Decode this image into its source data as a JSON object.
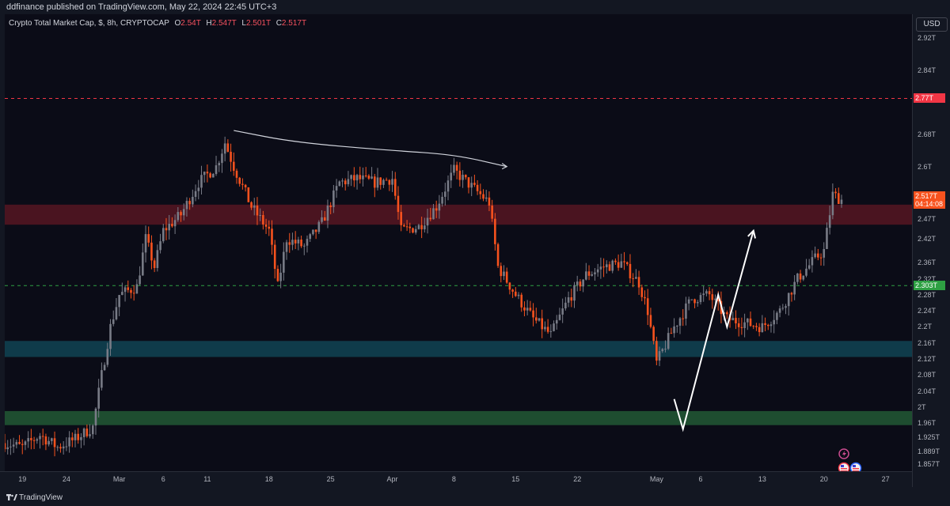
{
  "header": {
    "published": "ddfinance published on TradingView.com, May 22, 2024 22:45 UTC+3"
  },
  "legend": {
    "title": "Crypto Total Market Cap, $, 8h, CRYPTOCAP",
    "o_label": "O",
    "o_value": "2.54T",
    "h_label": "H",
    "h_value": "2.547T",
    "l_label": "L",
    "l_value": "2.501T",
    "c_label": "C",
    "c_value": "2.517T"
  },
  "price_axis": {
    "currency": "USD",
    "ticks": [
      "2.92T",
      "2.84T",
      "2.77T",
      "2.68T",
      "2.6T",
      "2.47T",
      "2.42T",
      "2.36T",
      "2.32T",
      "2.28T",
      "2.24T",
      "2.2T",
      "2.16T",
      "2.12T",
      "2.08T",
      "2.04T",
      "2T",
      "1.96T",
      "1.925T",
      "1.889T",
      "1.857T"
    ],
    "badges": {
      "red": "2.77T",
      "green": "2.303T",
      "last_price": "2.517T",
      "countdown": "04:14:08"
    }
  },
  "time_axis": {
    "ticks": [
      "19",
      "24",
      "Mar",
      "6",
      "11",
      "18",
      "25",
      "Apr",
      "8",
      "15",
      "22",
      "May",
      "6",
      "13",
      "20",
      "27"
    ]
  },
  "footer": {
    "brand": "TradingView"
  },
  "colors": {
    "up": "#787b86",
    "down": "#f7521e",
    "red_zone": "#4a1420",
    "blue_zone": "#0f3b4a",
    "green_zone": "#1e4d30",
    "red_line": "#f23645",
    "green_line": "#2ea043"
  },
  "chart_data": {
    "type": "candlestick",
    "title": "Crypto Total Market Cap, $, 8h, CRYPTOCAP",
    "y_unit": "T USD",
    "ylim": [
      1.84,
      2.98
    ],
    "x_range": [
      "2024-02-17",
      "2024-05-30"
    ],
    "timeframe": "8h",
    "anchors": [
      [
        "2024-02-17",
        1.91
      ],
      [
        "2024-02-19",
        1.9
      ],
      [
        "2024-02-21",
        1.93
      ],
      [
        "2024-02-23",
        1.9
      ],
      [
        "2024-02-25",
        1.92
      ],
      [
        "2024-02-27",
        1.95
      ],
      [
        "2024-02-28",
        2.08
      ],
      [
        "2024-02-29",
        2.2
      ],
      [
        "2024-03-01",
        2.28
      ],
      [
        "2024-03-03",
        2.3
      ],
      [
        "2024-03-04",
        2.42
      ],
      [
        "2024-03-05",
        2.35
      ],
      [
        "2024-03-06",
        2.44
      ],
      [
        "2024-03-08",
        2.48
      ],
      [
        "2024-03-10",
        2.56
      ],
      [
        "2024-03-12",
        2.6
      ],
      [
        "2024-03-13",
        2.66
      ],
      [
        "2024-03-14",
        2.6
      ],
      [
        "2024-03-16",
        2.5
      ],
      [
        "2024-03-18",
        2.44
      ],
      [
        "2024-03-19",
        2.3
      ],
      [
        "2024-03-20",
        2.42
      ],
      [
        "2024-03-22",
        2.4
      ],
      [
        "2024-03-24",
        2.46
      ],
      [
        "2024-03-26",
        2.56
      ],
      [
        "2024-03-28",
        2.57
      ],
      [
        "2024-03-30",
        2.56
      ],
      [
        "2024-04-01",
        2.57
      ],
      [
        "2024-04-02",
        2.44
      ],
      [
        "2024-04-04",
        2.45
      ],
      [
        "2024-04-06",
        2.5
      ],
      [
        "2024-04-08",
        2.59
      ],
      [
        "2024-04-10",
        2.55
      ],
      [
        "2024-04-12",
        2.51
      ],
      [
        "2024-04-13",
        2.35
      ],
      [
        "2024-04-15",
        2.28
      ],
      [
        "2024-04-17",
        2.22
      ],
      [
        "2024-04-19",
        2.18
      ],
      [
        "2024-04-21",
        2.27
      ],
      [
        "2024-04-23",
        2.33
      ],
      [
        "2024-04-25",
        2.35
      ],
      [
        "2024-04-27",
        2.36
      ],
      [
        "2024-04-29",
        2.31
      ],
      [
        "2024-04-30",
        2.24
      ],
      [
        "2024-05-01",
        2.11
      ],
      [
        "2024-05-03",
        2.2
      ],
      [
        "2024-05-05",
        2.27
      ],
      [
        "2024-05-07",
        2.28
      ],
      [
        "2024-05-09",
        2.22
      ],
      [
        "2024-05-11",
        2.21
      ],
      [
        "2024-05-13",
        2.2
      ],
      [
        "2024-05-15",
        2.24
      ],
      [
        "2024-05-17",
        2.32
      ],
      [
        "2024-05-19",
        2.37
      ],
      [
        "2024-05-20",
        2.39
      ],
      [
        "2024-05-21",
        2.53
      ],
      [
        "2024-05-22",
        2.517
      ]
    ],
    "zones": [
      {
        "color": "red",
        "from": 2.455,
        "to": 2.505
      },
      {
        "color": "blue",
        "from": 2.125,
        "to": 2.165
      },
      {
        "color": "green",
        "from": 1.955,
        "to": 1.99
      }
    ],
    "hlines": [
      {
        "value": 2.77,
        "color": "red",
        "style": "dashed"
      },
      {
        "value": 2.303,
        "color": "green",
        "style": "dashed"
      }
    ],
    "drawings": [
      {
        "kind": "curve",
        "points": [
          [
            "2024-03-14",
            2.69
          ],
          [
            "2024-03-21",
            2.66
          ],
          [
            "2024-04-01",
            2.64
          ],
          [
            "2024-04-08",
            2.63
          ],
          [
            "2024-04-14",
            2.6
          ]
        ]
      },
      {
        "kind": "arrow",
        "points": [
          [
            "2024-05-03",
            2.02
          ],
          [
            "2024-05-04",
            1.945
          ],
          [
            "2024-05-08",
            2.28
          ],
          [
            "2024-05-09",
            2.2
          ],
          [
            "2024-05-12",
            2.44
          ]
        ]
      }
    ],
    "last_price": 2.517
  }
}
